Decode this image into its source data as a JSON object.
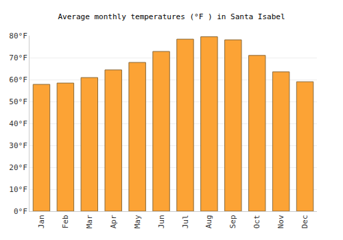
{
  "chart_data": {
    "type": "bar",
    "title": "Average monthly temperatures (°F ) in Santa Isabel",
    "categories": [
      "Jan",
      "Feb",
      "Mar",
      "Apr",
      "May",
      "Jun",
      "Jul",
      "Aug",
      "Sep",
      "Oct",
      "Nov",
      "Dec"
    ],
    "values": [
      57.8,
      58.4,
      60.9,
      64.4,
      67.8,
      72.8,
      78.4,
      79.5,
      78.1,
      71.0,
      63.5,
      59.0
    ],
    "color": "#fca335",
    "ylim": [
      0,
      80
    ],
    "yticks": [
      {
        "value": 0,
        "label": "0°F"
      },
      {
        "value": 10,
        "label": "10°F"
      },
      {
        "value": 20,
        "label": "20°F"
      },
      {
        "value": 30,
        "label": "30°F"
      },
      {
        "value": 40,
        "label": "40°F"
      },
      {
        "value": 50,
        "label": "50°F"
      },
      {
        "value": 60,
        "label": "60°F"
      },
      {
        "value": 70,
        "label": "70°F"
      },
      {
        "value": 80,
        "label": "80°F"
      }
    ],
    "grid": true
  }
}
